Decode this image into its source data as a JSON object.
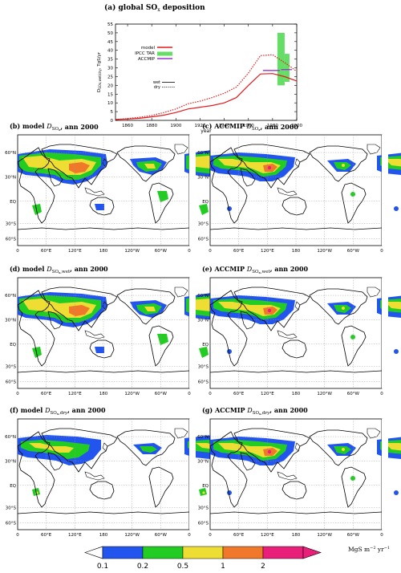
{
  "chart_data": [
    {
      "type": "line",
      "title": "(a) global SO",
      "title_sub": "x",
      "title_tail": " deposition",
      "xlabel": "year",
      "ylabel": "D",
      "ylabel_sub": "SOx,wet/dry",
      "ylabel_tail": ", TgS/yr",
      "xlim": [
        1850,
        2000
      ],
      "ylim": [
        0,
        55
      ],
      "x_ticks": [
        "1860",
        "1880",
        "1900",
        "1920",
        "1940",
        "1960",
        "1980",
        "2000"
      ],
      "y_ticks": [
        "0",
        "5",
        "10",
        "15",
        "20",
        "25",
        "30",
        "35",
        "40",
        "45",
        "50",
        "55"
      ],
      "legend": [
        "model",
        "IPCC TAR",
        "ACCMIP"
      ],
      "legend2": [
        "wet",
        "dry"
      ],
      "series": [
        {
          "name": "wet",
          "style": "solid",
          "color": "#e31a1c",
          "x": [
            1850,
            1860,
            1870,
            1880,
            1890,
            1900,
            1910,
            1920,
            1930,
            1940,
            1950,
            1960,
            1970,
            1980,
            1990,
            2000
          ],
          "y": [
            0.5,
            0.8,
            1.2,
            2.0,
            3.0,
            4.5,
            6.5,
            7.5,
            8.5,
            10.0,
            13.0,
            20.0,
            26.5,
            26.7,
            25.0,
            22.5
          ]
        },
        {
          "name": "dry",
          "style": "dotted",
          "color": "#e31a1c",
          "x": [
            1850,
            1860,
            1870,
            1880,
            1890,
            1900,
            1910,
            1920,
            1930,
            1940,
            1950,
            1960,
            1970,
            1980,
            1990,
            2000
          ],
          "y": [
            0.5,
            1.0,
            1.8,
            2.8,
            4.5,
            6.5,
            9.5,
            11.0,
            13.0,
            15.5,
            19.0,
            27.0,
            37.0,
            37.5,
            33.0,
            28.0
          ]
        }
      ],
      "ipcc_tar_bars": [
        {
          "x0": 1984,
          "x1": 1990,
          "y0": 20,
          "y1": 50
        },
        {
          "x0": 1990,
          "x1": 1994,
          "y0": 22,
          "y1": 38
        }
      ],
      "accmip_segments": [
        {
          "x0": 1972,
          "x1": 1986,
          "y": 28.5
        },
        {
          "x0": 1987,
          "x1": 1996,
          "y": 29
        }
      ],
      "colors": {
        "model": "#e31a1c",
        "ipcc_tar": "#66dd66",
        "accmip": "#9933cc"
      }
    },
    {
      "type": "heatmap",
      "panels": [
        {
          "prefix": "(b) model ",
          "dsub": "SO",
          "dsubx": "x",
          "dsubtail": "",
          "suffix": ", ann 2000"
        },
        {
          "prefix": "(c) ACCMIP ",
          "dsub": "SO",
          "dsubx": "x",
          "dsubtail": "",
          "suffix": ", ann 2000"
        },
        {
          "prefix": "(d) model ",
          "dsub": "SO",
          "dsubx": "x",
          "dsubtail": ",wet",
          "suffix": ", ann 2000"
        },
        {
          "prefix": "(e) ACCMIP ",
          "dsub": "SO",
          "dsubx": "x",
          "dsubtail": ",wet",
          "suffix": ", ann 2000"
        },
        {
          "prefix": "(f) model ",
          "dsub": "SO",
          "dsubx": "x",
          "dsubtail": ",dry",
          "suffix": ", ann 2000"
        },
        {
          "prefix": "(g) ACCMIP ",
          "dsub": "SO",
          "dsubx": "x",
          "dsubtail": ",dry",
          "suffix": ", ann 2000"
        }
      ],
      "lat_ticks": [
        "60°N",
        "30°N",
        "EQ",
        "30°S",
        "60°S"
      ],
      "lon_ticks": [
        "0",
        "60°E",
        "120°E",
        "180",
        "120°W",
        "60°W",
        "0"
      ],
      "colorbar": {
        "levels": [
          "0.1",
          "0.2",
          "0.5",
          "1",
          "2"
        ],
        "colors": [
          "#2255ee",
          "#22cc22",
          "#eedd33",
          "#f0782a",
          "#e8207a"
        ],
        "unit": "MgS m",
        "unit_sup1": "−2",
        "unit_mid": " yr",
        "unit_sup2": "−1"
      }
    }
  ]
}
